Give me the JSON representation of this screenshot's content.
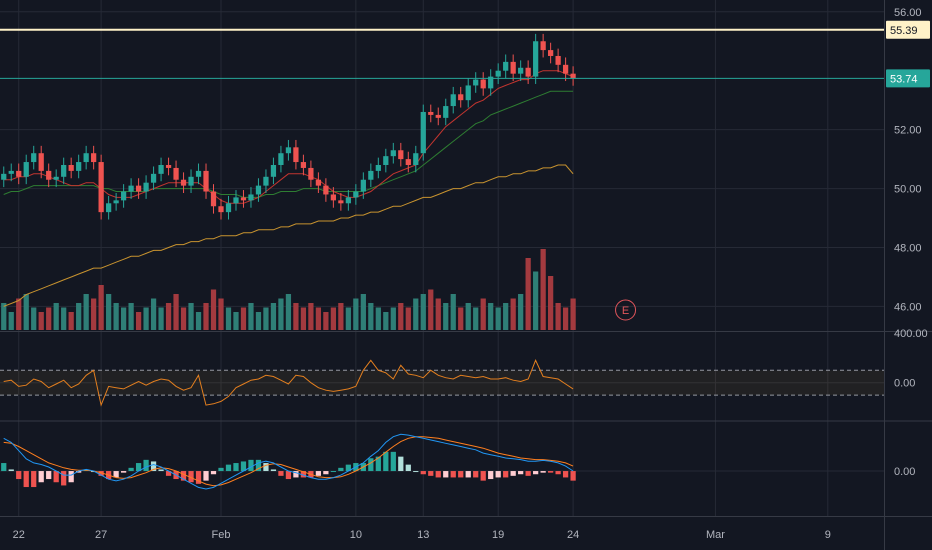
{
  "colors": {
    "background": "#131722",
    "grid": "#262a36",
    "axis_text": "#b2b5be",
    "up": "#26a69a",
    "down": "#ef5350",
    "up_volume": "#2f7f77",
    "down_volume": "#a33a3f",
    "ma_red": "#c2352f",
    "ma_green": "#2e7d32",
    "ma_orange": "#c8932f",
    "osc_line": "#e37f1f",
    "macd_line": "#2196f3",
    "signal_line": "#ff7f1f",
    "hist_pos_strong": "#26a69a",
    "hist_pos_weak": "#b2dfdb",
    "hist_neg_strong": "#ef5350",
    "hist_neg_weak": "#ffcdd2",
    "resistance_line": "#fff2c8",
    "last_price_line": "#26a69a",
    "earnings_marker": "#e0555b"
  },
  "price_axis": {
    "ticks": [
      "56.00",
      "52.00",
      "50.00",
      "48.00",
      "46.00"
    ],
    "tick_values": [
      56,
      52,
      50,
      48,
      46
    ],
    "range": [
      45.2,
      56.4
    ]
  },
  "oscillator_axis": {
    "labels": [
      "400.00",
      "0.00"
    ],
    "tick_values": [
      400,
      0
    ],
    "range": [
      -300,
      400
    ],
    "band_upper": 100,
    "band_lower": -100
  },
  "macd_axis": {
    "labels": [
      "0.00"
    ],
    "tick_values": [
      0
    ],
    "range": [
      -0.55,
      0.6
    ]
  },
  "time_axis": {
    "labels": [
      "22",
      "27",
      "Feb",
      "10",
      "13",
      "19",
      "24",
      "Mar",
      "9"
    ],
    "label_bar_index": [
      2,
      13,
      29,
      47,
      56,
      66,
      76,
      95,
      110
    ],
    "total_bars": 118
  },
  "badges": {
    "resistance": {
      "label": "55.39",
      "value": 55.39
    },
    "last_price": {
      "label": "53.74",
      "value": 53.74
    }
  },
  "earnings_marker": {
    "label": "E",
    "bar_index": 83
  },
  "chart_data": {
    "type": "candlestick",
    "title": "",
    "ylim": [
      45.2,
      56.4
    ],
    "series": [
      {
        "name": "close",
        "values": [
          50.5,
          50.6,
          50.4,
          50.9,
          51.2,
          50.6,
          50.3,
          50.4,
          50.8,
          50.6,
          50.9,
          51.2,
          50.9,
          49.2,
          49.5,
          49.6,
          49.9,
          50.1,
          49.9,
          50.2,
          50.5,
          50.8,
          50.7,
          50.3,
          50.1,
          50.4,
          50.6,
          49.9,
          49.4,
          49.2,
          49.5,
          49.7,
          49.6,
          49.8,
          50.1,
          50.4,
          50.8,
          51.2,
          51.4,
          50.9,
          50.7,
          50.3,
          50.1,
          49.8,
          49.6,
          49.5,
          49.7,
          49.9,
          50.3,
          50.6,
          50.8,
          51.1,
          51.3,
          51.0,
          50.8,
          51.2,
          52.6,
          52.5,
          52.4,
          52.8,
          53.2,
          53.0,
          53.5,
          53.7,
          53.4,
          53.8,
          54.0,
          54.3,
          53.9,
          54.1,
          53.8,
          55.0,
          54.7,
          54.5,
          54.2,
          53.9,
          53.74
        ]
      },
      {
        "name": "ma_short",
        "values": [
          50.3,
          50.3,
          50.4,
          50.4,
          50.5,
          50.5,
          50.4,
          50.3,
          50.2,
          50.1,
          50.1,
          50.2,
          50.2,
          50.0,
          49.8,
          49.7,
          49.7,
          49.7,
          49.8,
          49.9,
          50.0,
          50.1,
          50.2,
          50.2,
          50.2,
          50.2,
          50.2,
          50.0,
          49.8,
          49.6,
          49.5,
          49.5,
          49.5,
          49.6,
          49.7,
          49.9,
          50.1,
          50.3,
          50.5,
          50.5,
          50.5,
          50.4,
          50.3,
          50.1,
          49.9,
          49.8,
          49.7,
          49.7,
          49.8,
          49.9,
          50.1,
          50.3,
          50.5,
          50.6,
          50.7,
          50.8,
          51.2,
          51.5,
          51.8,
          52.1,
          52.3,
          52.5,
          52.7,
          52.9,
          53.0,
          53.2,
          53.4,
          53.5,
          53.6,
          53.7,
          53.7,
          53.9,
          54.0,
          54.0,
          54.0,
          53.9,
          53.8
        ]
      },
      {
        "name": "ma_mid",
        "values": [
          49.8,
          49.9,
          49.9,
          50.0,
          50.1,
          50.1,
          50.1,
          50.1,
          50.1,
          50.1,
          50.1,
          50.1,
          50.1,
          50.0,
          50.0,
          49.9,
          49.9,
          49.9,
          49.9,
          49.9,
          50.0,
          50.0,
          50.0,
          50.0,
          50.0,
          50.0,
          50.0,
          50.0,
          49.9,
          49.8,
          49.8,
          49.8,
          49.7,
          49.7,
          49.7,
          49.8,
          49.8,
          49.9,
          49.9,
          49.9,
          50.0,
          50.0,
          50.0,
          49.9,
          49.9,
          49.9,
          49.9,
          49.9,
          49.9,
          50.0,
          50.1,
          50.2,
          50.3,
          50.4,
          50.5,
          50.6,
          50.8,
          51.0,
          51.2,
          51.4,
          51.6,
          51.8,
          52.0,
          52.2,
          52.3,
          52.5,
          52.6,
          52.7,
          52.8,
          52.9,
          53.0,
          53.1,
          53.2,
          53.3,
          53.3,
          53.3,
          53.3
        ]
      },
      {
        "name": "ma_long",
        "values": [
          46.0,
          46.1,
          46.2,
          46.4,
          46.5,
          46.6,
          46.7,
          46.8,
          46.9,
          47.0,
          47.1,
          47.2,
          47.3,
          47.3,
          47.4,
          47.5,
          47.6,
          47.7,
          47.7,
          47.8,
          47.9,
          47.9,
          48.0,
          48.1,
          48.1,
          48.2,
          48.2,
          48.3,
          48.3,
          48.4,
          48.4,
          48.4,
          48.5,
          48.5,
          48.6,
          48.6,
          48.6,
          48.7,
          48.7,
          48.8,
          48.8,
          48.8,
          48.9,
          48.9,
          48.9,
          49.0,
          49.0,
          49.1,
          49.1,
          49.2,
          49.2,
          49.3,
          49.4,
          49.4,
          49.5,
          49.6,
          49.7,
          49.7,
          49.8,
          49.9,
          50.0,
          50.0,
          50.1,
          50.2,
          50.2,
          50.3,
          50.4,
          50.4,
          50.5,
          50.5,
          50.6,
          50.6,
          50.7,
          50.7,
          50.8,
          50.8,
          50.5
        ]
      },
      {
        "name": "volume",
        "values": [
          6,
          4,
          7,
          8,
          5,
          4,
          5,
          6,
          5,
          4,
          6,
          8,
          7,
          10,
          8,
          6,
          5,
          6,
          4,
          5,
          7,
          5,
          6,
          8,
          5,
          6,
          4,
          6,
          9,
          7,
          5,
          4,
          5,
          6,
          4,
          5,
          6,
          7,
          8,
          6,
          5,
          6,
          5,
          4,
          5,
          6,
          5,
          7,
          8,
          6,
          5,
          4,
          5,
          6,
          5,
          7,
          8,
          9,
          7,
          6,
          8,
          5,
          6,
          5,
          7,
          6,
          5,
          6,
          7,
          8,
          16,
          13,
          18,
          12,
          6,
          5,
          7
        ]
      },
      {
        "name": "oscillator",
        "values": [
          10,
          20,
          -30,
          -20,
          30,
          10,
          -40,
          -10,
          20,
          -40,
          -10,
          60,
          100,
          -180,
          -30,
          -40,
          -50,
          -20,
          10,
          -20,
          10,
          30,
          20,
          -30,
          -60,
          -40,
          60,
          -180,
          -170,
          -150,
          -110,
          -40,
          -10,
          20,
          30,
          60,
          50,
          20,
          -10,
          60,
          50,
          0,
          -40,
          -60,
          -70,
          -60,
          -50,
          -30,
          100,
          180,
          100,
          80,
          30,
          140,
          70,
          60,
          40,
          100,
          60,
          40,
          30,
          60,
          50,
          40,
          50,
          30,
          30,
          40,
          20,
          10,
          30,
          180,
          50,
          40,
          30,
          -10,
          -50
        ]
      },
      {
        "name": "macd",
        "values": [
          0.4,
          0.35,
          0.25,
          0.15,
          0.1,
          0.08,
          0.05,
          0.0,
          -0.05,
          -0.05,
          0.0,
          0.02,
          0.0,
          -0.05,
          -0.1,
          -0.12,
          -0.1,
          -0.06,
          0.0,
          0.05,
          0.08,
          0.05,
          0.0,
          -0.05,
          -0.1,
          -0.15,
          -0.2,
          -0.22,
          -0.2,
          -0.15,
          -0.1,
          -0.05,
          0.0,
          0.05,
          0.1,
          0.12,
          0.1,
          0.05,
          0.0,
          -0.02,
          -0.05,
          -0.08,
          -0.1,
          -0.1,
          -0.08,
          -0.05,
          0.0,
          0.05,
          0.1,
          0.18,
          0.25,
          0.35,
          0.42,
          0.45,
          0.44,
          0.42,
          0.4,
          0.38,
          0.36,
          0.34,
          0.32,
          0.3,
          0.28,
          0.26,
          0.22,
          0.2,
          0.18,
          0.16,
          0.15,
          0.14,
          0.12,
          0.12,
          0.13,
          0.12,
          0.1,
          0.06,
          0.0
        ]
      },
      {
        "name": "signal",
        "values": [
          0.35,
          0.34,
          0.3,
          0.25,
          0.2,
          0.15,
          0.1,
          0.07,
          0.04,
          0.02,
          0.01,
          0.01,
          0.0,
          -0.02,
          -0.05,
          -0.08,
          -0.09,
          -0.08,
          -0.05,
          -0.02,
          0.02,
          0.04,
          0.03,
          0.0,
          -0.04,
          -0.08,
          -0.12,
          -0.16,
          -0.18,
          -0.17,
          -0.14,
          -0.1,
          -0.06,
          -0.02,
          0.03,
          0.07,
          0.09,
          0.08,
          0.05,
          0.02,
          -0.01,
          -0.04,
          -0.07,
          -0.08,
          -0.08,
          -0.07,
          -0.04,
          0.0,
          0.05,
          0.1,
          0.16,
          0.23,
          0.3,
          0.36,
          0.4,
          0.42,
          0.42,
          0.41,
          0.4,
          0.38,
          0.36,
          0.34,
          0.32,
          0.3,
          0.28,
          0.25,
          0.22,
          0.2,
          0.18,
          0.16,
          0.15,
          0.14,
          0.14,
          0.13,
          0.12,
          0.1,
          0.06
        ]
      }
    ]
  }
}
